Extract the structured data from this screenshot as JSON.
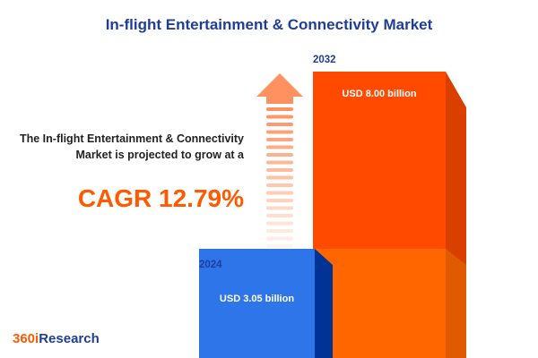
{
  "title": "In-flight Entertainment & Connectivity Market",
  "description": "The In-flight Entertainment & Connectivity Market is projected to grow at a",
  "cagr_label": "CAGR 12.79%",
  "logo": {
    "num": "360i",
    "word": "Research"
  },
  "colors": {
    "bar_2024": "#2e75ea",
    "bar_2032": "#ff4a00",
    "title": "#1f3d99",
    "cagr": "#ff5a00"
  },
  "chart_data": {
    "type": "bar",
    "categories": [
      "2024",
      "2032"
    ],
    "values": [
      3.05,
      8.0
    ],
    "unit": "USD billion",
    "labels": [
      "USD 3.05 billion",
      "USD 8.00 billion"
    ],
    "cagr": "12.79%"
  }
}
